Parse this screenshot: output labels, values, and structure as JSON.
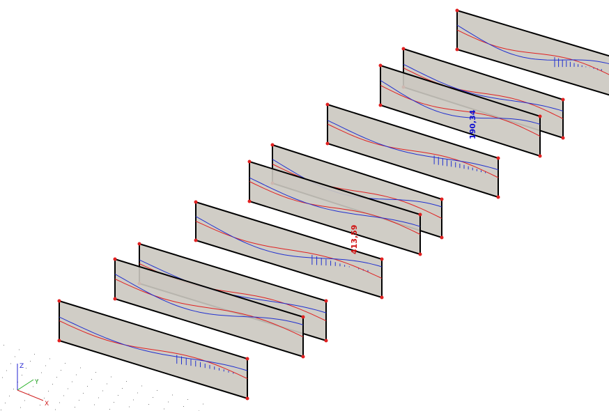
{
  "results_view": {
    "labels": [
      "190,34",
      "413,59"
    ],
    "axes": {
      "z": "Z",
      "y": "Y",
      "x": "X"
    }
  }
}
